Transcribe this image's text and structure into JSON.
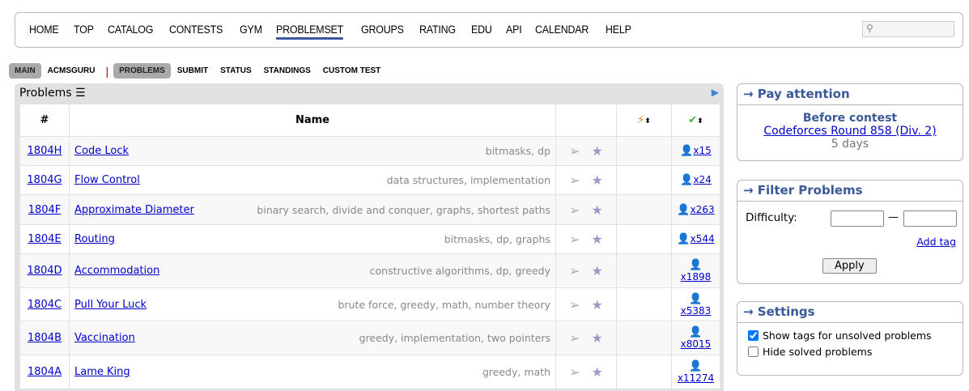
{
  "nav": {
    "items": [
      "HOME",
      "TOP",
      "CATALOG",
      "CONTESTS",
      "GYM",
      "PROBLEMSET",
      "GROUPS",
      "RATING",
      "EDU",
      "API",
      "CALENDAR",
      "HELP"
    ],
    "active": "PROBLEMSET"
  },
  "subnav": {
    "left": [
      "MAIN",
      "ACMSGURU"
    ],
    "right": [
      "PROBLEMS",
      "SUBMIT",
      "STATUS",
      "STANDINGS",
      "CUSTOM TEST"
    ]
  },
  "panel": {
    "title": "Problems",
    "columns": {
      "id": "#",
      "name": "Name"
    }
  },
  "problems": [
    {
      "id": "1804H",
      "name": "Code Lock",
      "tags": "bitmasks, dp",
      "solved": "x15"
    },
    {
      "id": "1804G",
      "name": "Flow Control",
      "tags": "data structures, implementation",
      "solved": "x24"
    },
    {
      "id": "1804F",
      "name": "Approximate Diameter",
      "tags": "binary search, divide and conquer, graphs, shortest paths",
      "solved": "x263"
    },
    {
      "id": "1804E",
      "name": "Routing",
      "tags": "bitmasks, dp, graphs",
      "solved": "x544"
    },
    {
      "id": "1804D",
      "name": "Accommodation",
      "tags": "constructive algorithms, dp, greedy",
      "solved": "x1898"
    },
    {
      "id": "1804C",
      "name": "Pull Your Luck",
      "tags": "brute force, greedy, math, number theory",
      "solved": "x5383"
    },
    {
      "id": "1804B",
      "name": "Vaccination",
      "tags": "greedy, implementation, two pointers",
      "solved": "x8015"
    },
    {
      "id": "1804A",
      "name": "Lame King",
      "tags": "greedy, math",
      "solved": "x11274"
    }
  ],
  "pay": {
    "title": "→ Pay attention",
    "heading": "Before contest",
    "contest": "Codeforces Round 858 (Div. 2)",
    "time": "5 days"
  },
  "filter": {
    "title": "→ Filter Problems",
    "difficulty": "Difficulty:",
    "dash": "—",
    "add_tag": "Add tag",
    "apply": "Apply"
  },
  "settings": {
    "title": "→ Settings",
    "show_tags": "Show tags for unsolved problems",
    "show_tags_checked": true,
    "hide_solved": "Hide solved problems",
    "hide_solved_checked": false
  }
}
